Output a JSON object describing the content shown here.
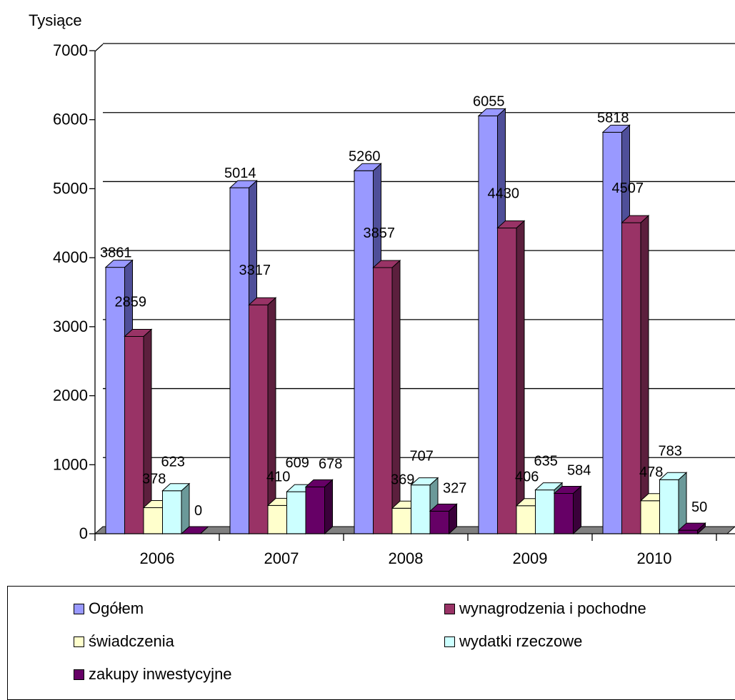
{
  "chart_data": {
    "type": "bar",
    "ylabel": "Tysiące",
    "xlabel": "",
    "categories": [
      "2006",
      "2007",
      "2008",
      "2009",
      "2010"
    ],
    "ylim": [
      0,
      7000
    ],
    "yticks": [
      "0",
      "1000",
      "2000",
      "3000",
      "4000",
      "5000",
      "6000",
      "7000"
    ],
    "grid": true,
    "legend_position": "bottom",
    "series": [
      {
        "name": "Ogółem",
        "values": [
          3861,
          5014,
          5260,
          6055,
          5818
        ],
        "color": "#9999ff",
        "side": "#4f4f99"
      },
      {
        "name": "wynagrodzenia i pochodne",
        "values": [
          2859,
          3317,
          3857,
          4430,
          4507
        ],
        "color": "#993366",
        "side": "#5c1f3d"
      },
      {
        "name": "świadczenia",
        "values": [
          378,
          410,
          369,
          406,
          478
        ],
        "color": "#ffffcc",
        "side": "#b3b38f"
      },
      {
        "name": "wydatki rzeczowe",
        "values": [
          623,
          609,
          707,
          635,
          783
        ],
        "color": "#ccffff",
        "side": "#6b9999"
      },
      {
        "name": "zakupy inwestycyjne",
        "values": [
          0,
          678,
          327,
          584,
          50
        ],
        "color": "#660066",
        "side": "#3a003a"
      }
    ]
  }
}
